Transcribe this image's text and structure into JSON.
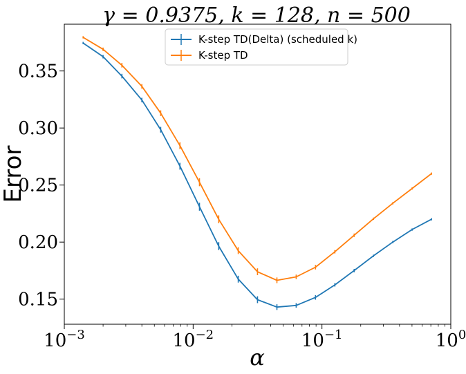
{
  "chart_data": {
    "type": "line",
    "title": "γ = 0.9375, k = 128, n = 500",
    "xlabel": "α",
    "ylabel": "Error",
    "xscale": "log",
    "xlim": [
      0.001,
      1
    ],
    "ylim": [
      0.128,
      0.391
    ],
    "x_ticks": [
      {
        "value": 0.001,
        "base": "10",
        "exp": "−3"
      },
      {
        "value": 0.01,
        "base": "10",
        "exp": "−2"
      },
      {
        "value": 0.1,
        "base": "10",
        "exp": "−1"
      },
      {
        "value": 1,
        "base": "10",
        "exp": "0"
      }
    ],
    "y_ticks": [
      {
        "value": 0.15,
        "label": "0.15"
      },
      {
        "value": 0.2,
        "label": "0.20"
      },
      {
        "value": 0.25,
        "label": "0.25"
      },
      {
        "value": 0.3,
        "label": "0.30"
      },
      {
        "value": 0.35,
        "label": "0.35"
      }
    ],
    "grid": false,
    "legend_position": "top-center",
    "x": [
      0.0014,
      0.002,
      0.0028,
      0.004,
      0.0056,
      0.0079,
      0.0112,
      0.0158,
      0.0224,
      0.0316,
      0.0447,
      0.0631,
      0.0891,
      0.1259,
      0.1778,
      0.2512,
      0.3548,
      0.5012,
      0.7079
    ],
    "series": [
      {
        "name": "K-step TD(Delta) (scheduled k)",
        "color": "#1f77b4",
        "values": [
          0.3745,
          0.3625,
          0.3455,
          0.3245,
          0.2985,
          0.2665,
          0.231,
          0.1965,
          0.1675,
          0.1495,
          0.143,
          0.1445,
          0.1515,
          0.1625,
          0.175,
          0.188,
          0.2,
          0.211,
          0.22
        ],
        "errors": [
          0.001,
          0.0015,
          0.002,
          0.002,
          0.0025,
          0.003,
          0.0035,
          0.0035,
          0.003,
          0.003,
          0.0025,
          0.002,
          0.002,
          0.0015,
          0.0015,
          0.001,
          0.001,
          0.001,
          0.001
        ]
      },
      {
        "name": "K-step TD",
        "color": "#ff7f0e",
        "values": [
          0.3795,
          0.369,
          0.355,
          0.3365,
          0.313,
          0.2845,
          0.2525,
          0.22,
          0.1925,
          0.174,
          0.1665,
          0.1695,
          0.178,
          0.1915,
          0.206,
          0.2205,
          0.234,
          0.247,
          0.26
        ],
        "errors": [
          0.001,
          0.0015,
          0.002,
          0.002,
          0.0025,
          0.003,
          0.0035,
          0.0035,
          0.003,
          0.003,
          0.0025,
          0.002,
          0.002,
          0.0015,
          0.0015,
          0.001,
          0.001,
          0.001,
          0.001
        ]
      }
    ]
  }
}
